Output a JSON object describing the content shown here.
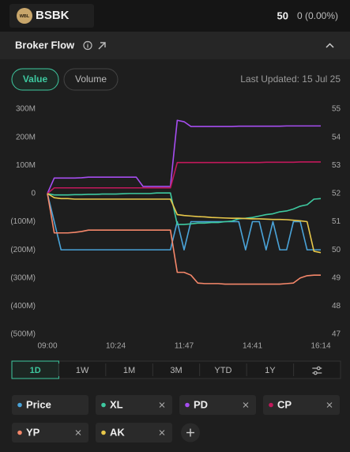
{
  "header": {
    "logo": "WBL",
    "ticker": "BSBK",
    "price": "50",
    "change": "0 (0.00%)"
  },
  "panel": {
    "title": "Broker Flow"
  },
  "toggle": {
    "options": [
      "Value",
      "Volume"
    ],
    "active": 0
  },
  "last_updated": "Last Updated: 15 Jul 25",
  "chart_data": {
    "type": "line",
    "categories": [
      "09:00",
      null,
      null,
      null,
      null,
      null,
      null,
      null,
      null,
      null,
      "10:24",
      null,
      null,
      null,
      null,
      null,
      null,
      null,
      null,
      null,
      "11:47",
      null,
      null,
      null,
      null,
      null,
      null,
      null,
      null,
      null,
      "14:41",
      null,
      null,
      null,
      null,
      null,
      null,
      null,
      null,
      null,
      "16:14"
    ],
    "series": [
      {
        "name": "Price",
        "color": "#4aa3d8",
        "axis": "y2",
        "removable": false,
        "values": [
          52,
          51,
          50,
          50,
          50,
          50,
          50,
          50,
          50,
          50,
          50,
          50,
          50,
          50,
          50,
          50,
          50,
          50,
          50,
          51,
          50,
          51,
          51,
          51,
          51,
          51,
          51,
          51,
          51,
          50,
          51,
          51,
          50,
          51,
          50,
          50,
          51,
          51,
          50,
          50,
          50
        ]
      },
      {
        "name": "XL",
        "color": "#3ec9a0",
        "removable": true,
        "values": [
          0,
          -5000000,
          -5000000,
          -5000000,
          -4000000,
          -4000000,
          -3000000,
          -3000000,
          -2000000,
          -2000000,
          -2000000,
          -1000000,
          0,
          0,
          0,
          0,
          2000000,
          2000000,
          2000000,
          -110000000,
          -110000000,
          -108000000,
          -105000000,
          -105000000,
          -103000000,
          -103000000,
          -100000000,
          -98000000,
          -90000000,
          -88000000,
          -85000000,
          -80000000,
          -75000000,
          -72000000,
          -65000000,
          -62000000,
          -55000000,
          -45000000,
          -40000000,
          -20000000,
          -18000000
        ]
      },
      {
        "name": "PD",
        "color": "#a64df0",
        "removable": true,
        "values": [
          0,
          55000000,
          55000000,
          55000000,
          55000000,
          56000000,
          58000000,
          58000000,
          58000000,
          58000000,
          58000000,
          58000000,
          58000000,
          58000000,
          25000000,
          25000000,
          25000000,
          25000000,
          25000000,
          260000000,
          255000000,
          238000000,
          238000000,
          238000000,
          238000000,
          238000000,
          238000000,
          238000000,
          239000000,
          239000000,
          239000000,
          239000000,
          239000000,
          239000000,
          239000000,
          240000000,
          240000000,
          240000000,
          240000000,
          240000000,
          240000000
        ]
      },
      {
        "name": "CP",
        "color": "#c2185b",
        "removable": true,
        "values": [
          0,
          20000000,
          20000000,
          20000000,
          20000000,
          20000000,
          20000000,
          20000000,
          20000000,
          20000000,
          20000000,
          20000000,
          20000000,
          20000000,
          20000000,
          20000000,
          20000000,
          20000000,
          20000000,
          110000000,
          110000000,
          110000000,
          110000000,
          110000000,
          110000000,
          110000000,
          110000000,
          110000000,
          110000000,
          110000000,
          110000000,
          110000000,
          111000000,
          111000000,
          111000000,
          111000000,
          111000000,
          112000000,
          112000000,
          112000000,
          112000000
        ]
      },
      {
        "name": "YP",
        "color": "#f5876a",
        "removable": true,
        "values": [
          0,
          -140000000,
          -140000000,
          -140000000,
          -138000000,
          -135000000,
          -130000000,
          -130000000,
          -130000000,
          -130000000,
          -130000000,
          -130000000,
          -130000000,
          -130000000,
          -130000000,
          -130000000,
          -130000000,
          -130000000,
          -130000000,
          -280000000,
          -280000000,
          -290000000,
          -318000000,
          -320000000,
          -320000000,
          -320000000,
          -322000000,
          -322000000,
          -322000000,
          -322000000,
          -322000000,
          -322000000,
          -322000000,
          -322000000,
          -322000000,
          -320000000,
          -318000000,
          -300000000,
          -292000000,
          -290000000,
          -290000000
        ]
      },
      {
        "name": "AK",
        "color": "#e8c84a",
        "removable": true,
        "values": [
          0,
          -15000000,
          -18000000,
          -18000000,
          -20000000,
          -20000000,
          -20000000,
          -20000000,
          -20000000,
          -20000000,
          -20000000,
          -20000000,
          -20000000,
          -20000000,
          -20000000,
          -20000000,
          -20000000,
          -20000000,
          -20000000,
          -75000000,
          -78000000,
          -80000000,
          -82000000,
          -83000000,
          -85000000,
          -86000000,
          -87000000,
          -88000000,
          -88000000,
          -89000000,
          -90000000,
          -90000000,
          -91000000,
          -92000000,
          -92000000,
          -93000000,
          -95000000,
          -97000000,
          -100000000,
          -205000000,
          -210000000
        ]
      }
    ],
    "ylim": [
      -500000000,
      300000000
    ],
    "yticks": [
      {
        "value": 300000000,
        "label": "300M"
      },
      {
        "value": 200000000,
        "label": "200M"
      },
      {
        "value": 100000000,
        "label": "100M"
      },
      0,
      {
        "value": -100000000,
        "label": "(100M)"
      },
      {
        "value": -200000000,
        "label": "(200M)"
      },
      {
        "value": -300000000,
        "label": "(300M)"
      },
      {
        "value": -400000000,
        "label": "(400M)"
      },
      {
        "value": -500000000,
        "label": "(500M)"
      }
    ],
    "y2lim": [
      47,
      55
    ],
    "y2ticks": [
      55,
      54,
      53,
      52,
      51,
      50,
      49,
      48,
      47
    ],
    "grid": false
  },
  "ranges": {
    "options": [
      "1D",
      "1W",
      "1M",
      "3M",
      "YTD",
      "1Y"
    ],
    "active": 0
  }
}
